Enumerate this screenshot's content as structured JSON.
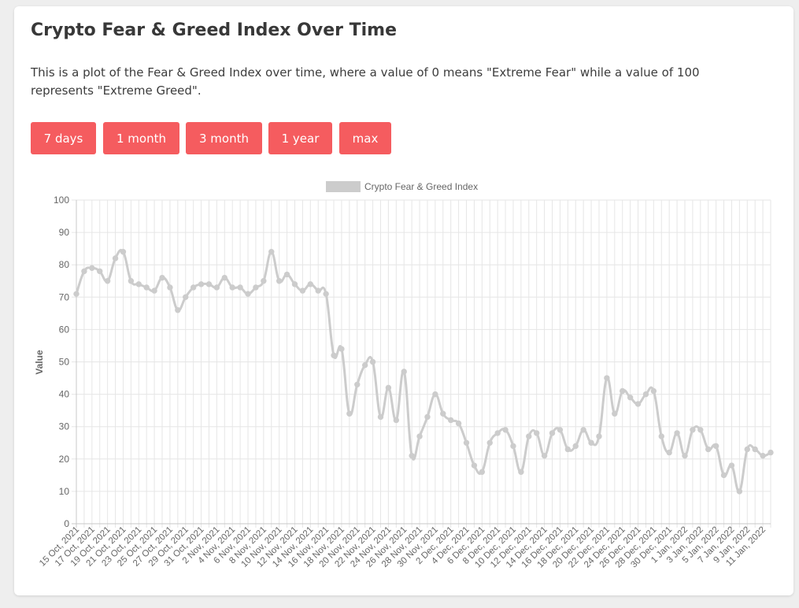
{
  "page": {
    "title": "Crypto Fear & Greed Index Over Time",
    "description": "This is a plot of the Fear & Greed Index over time, where a value of 0 means \"Extreme Fear\" while a value of 100 represents \"Extreme Greed\".",
    "buttons": [
      {
        "label": "7 days"
      },
      {
        "label": "1 month"
      },
      {
        "label": "3 month"
      },
      {
        "label": "1 year"
      },
      {
        "label": "max"
      }
    ],
    "button_color": "#f55c5f"
  },
  "chart_data": {
    "type": "line",
    "title": "",
    "xlabel": "",
    "ylabel": "Value",
    "ylim": [
      0,
      100
    ],
    "yticks": [
      0,
      10,
      20,
      30,
      40,
      50,
      60,
      70,
      80,
      90,
      100
    ],
    "grid": true,
    "legend_position": "top-center",
    "series": [
      {
        "name": "Crypto Fear & Greed Index",
        "color": "#cccccc",
        "values": [
          71,
          78,
          79,
          78,
          75,
          82,
          84,
          75,
          74,
          73,
          72,
          76,
          73,
          66,
          70,
          73,
          74,
          74,
          73,
          76,
          73,
          73,
          71,
          73,
          75,
          84,
          75,
          77,
          74,
          72,
          74,
          72,
          71,
          52,
          54,
          34,
          43,
          49,
          50,
          33,
          42,
          32,
          47,
          21,
          27,
          33,
          40,
          34,
          32,
          31,
          25,
          18,
          16,
          25,
          28,
          29,
          24,
          16,
          27,
          28,
          21,
          28,
          29,
          23,
          24,
          29,
          25,
          27,
          45,
          34,
          41,
          39,
          37,
          40,
          41,
          27,
          22,
          28,
          21,
          29,
          29,
          23,
          24,
          15,
          18,
          10,
          23,
          23,
          21,
          22
        ]
      }
    ],
    "x_tick_labels": [
      "15 Oct, 2021",
      "17 Oct, 2021",
      "19 Oct, 2021",
      "21 Oct, 2021",
      "23 Oct, 2021",
      "25 Oct, 2021",
      "27 Oct, 2021",
      "29 Oct, 2021",
      "31 Oct, 2021",
      "2 Nov, 2021",
      "4 Nov, 2021",
      "6 Nov, 2021",
      "8 Nov, 2021",
      "10 Nov, 2021",
      "12 Nov, 2021",
      "14 Nov, 2021",
      "16 Nov, 2021",
      "18 Nov, 2021",
      "20 Nov, 2021",
      "22 Nov, 2021",
      "24 Nov, 2021",
      "26 Nov, 2021",
      "28 Nov, 2021",
      "30 Nov, 2021",
      "2 Dec, 2021",
      "4 Dec, 2021",
      "6 Dec, 2021",
      "8 Dec, 2021",
      "10 Dec, 2021",
      "12 Dec, 2021",
      "14 Dec, 2021",
      "16 Dec, 2021",
      "18 Dec, 2021",
      "20 Dec, 2021",
      "22 Dec, 2021",
      "24 Dec, 2021",
      "26 Dec, 2021",
      "28 Dec, 2021",
      "30 Dec, 2021",
      "1 Jan, 2022",
      "3 Jan, 2022",
      "5 Jan, 2022",
      "7 Jan, 2022",
      "9 Jan, 2022",
      "11 Jan, 2022"
    ]
  }
}
